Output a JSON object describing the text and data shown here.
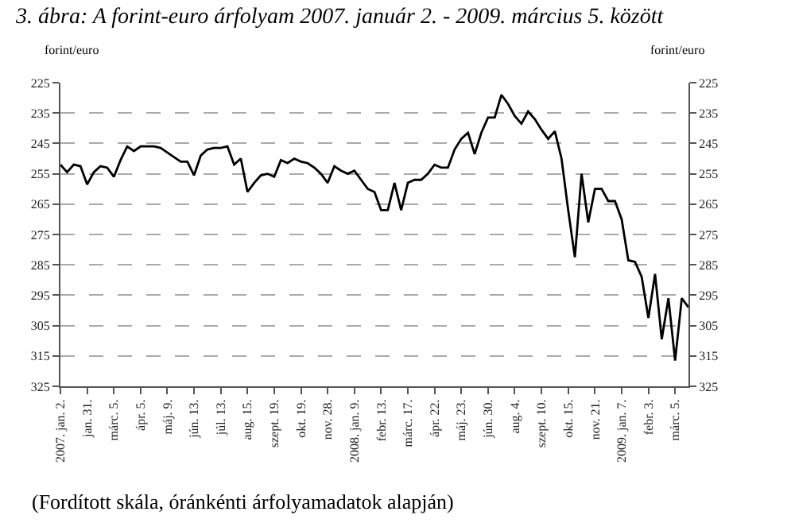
{
  "chart_data": {
    "type": "line",
    "title": "3. ábra: A forint-euro árfolyam 2007. január 2. - 2009. március 5. között",
    "ylabel": "forint/euro",
    "y2label": "forint/euro",
    "annotations": [
      "(Fordított skála, óránkénti árfolyamadatok alapján)"
    ],
    "categories": [
      "2007. jan. 2.",
      null,
      null,
      null,
      "jan. 31.",
      null,
      null,
      null,
      "márc. 5.",
      null,
      null,
      null,
      "ápr. 5.",
      null,
      null,
      null,
      "máj. 9.",
      null,
      null,
      null,
      "jún. 13.",
      null,
      null,
      null,
      "júl. 13.",
      null,
      null,
      null,
      "aug. 15.",
      null,
      null,
      null,
      "szept. 19.",
      null,
      null,
      null,
      "okt. 19.",
      null,
      null,
      null,
      "nov. 28.",
      null,
      null,
      null,
      "2008. jan. 9.",
      null,
      null,
      null,
      "febr. 13.",
      null,
      null,
      null,
      "márc. 17.",
      null,
      null,
      null,
      "ápr. 22.",
      null,
      null,
      null,
      "máj. 23.",
      null,
      null,
      null,
      "jún. 30.",
      null,
      null,
      null,
      "aug. 4.",
      null,
      null,
      null,
      "szept. 10.",
      null,
      null,
      null,
      "okt. 15.",
      null,
      null,
      null,
      "nov. 21.",
      null,
      null,
      null,
      "2009. jan. 7.",
      null,
      null,
      null,
      "febr. 3.",
      null,
      null,
      null,
      "márc. 5.",
      null,
      null
    ],
    "series": [
      {
        "color": "#000000",
        "values": [
          252,
          254.5,
          252,
          252.5,
          258.5,
          254.5,
          252.5,
          253,
          256,
          250.5,
          246,
          247.5,
          246,
          246,
          246,
          246.5,
          248,
          249.5,
          251,
          251,
          255.5,
          249,
          247,
          246.5,
          246.5,
          246,
          252,
          250,
          261,
          258,
          255.5,
          255,
          256,
          250.5,
          251.5,
          250,
          251,
          251.5,
          253,
          255,
          258,
          252.5,
          254,
          255,
          254,
          257,
          260,
          261,
          267,
          267,
          258,
          267,
          258,
          257,
          257,
          255,
          252,
          253,
          253,
          247,
          243.5,
          241.5,
          248.5,
          241.5,
          236.5,
          236.5,
          229,
          232,
          236,
          238.5,
          234.5,
          237,
          240.5,
          243.5,
          241,
          250,
          267,
          282.5,
          255,
          271,
          260,
          260,
          264,
          264,
          270,
          283.5,
          284,
          289,
          302.5,
          288,
          309.5,
          296,
          316.5,
          296,
          299
        ]
      }
    ],
    "ylim": [
      325,
      225
    ],
    "yticks": [
      225,
      235,
      245,
      255,
      265,
      275,
      285,
      295,
      305,
      315,
      325
    ],
    "y2lim": [
      325,
      225
    ],
    "y2ticks": [
      225,
      235,
      245,
      255,
      265,
      275,
      285,
      295,
      305,
      315,
      325
    ],
    "grid": "y",
    "marker": "none",
    "line_style": "solid"
  }
}
